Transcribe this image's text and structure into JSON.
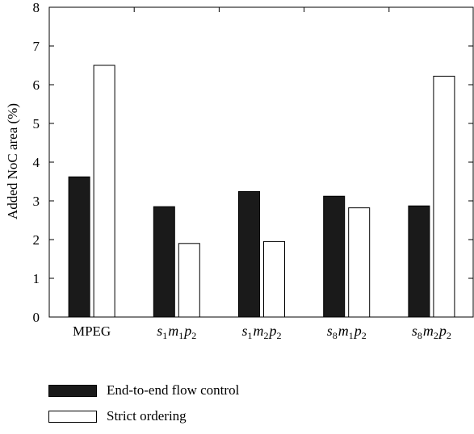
{
  "chart_data": {
    "type": "bar",
    "categories": [
      {
        "base": "s",
        "sub": "",
        "plain": "MPEG"
      },
      {
        "parts": [
          [
            "s",
            "1"
          ],
          [
            "m",
            "1"
          ],
          [
            "p",
            "2"
          ]
        ]
      },
      {
        "parts": [
          [
            "s",
            "1"
          ],
          [
            "m",
            "2"
          ],
          [
            "p",
            "2"
          ]
        ]
      },
      {
        "parts": [
          [
            "s",
            "8"
          ],
          [
            "m",
            "1"
          ],
          [
            "p",
            "2"
          ]
        ]
      },
      {
        "parts": [
          [
            "s",
            "8"
          ],
          [
            "m",
            "2"
          ],
          [
            "p",
            "2"
          ]
        ]
      }
    ],
    "series": [
      {
        "name": "End-to-end flow control",
        "color": "#1a1a1a",
        "values": [
          3.62,
          2.85,
          3.24,
          3.12,
          2.87
        ]
      },
      {
        "name": "Strict ordering",
        "color": "#ffffff",
        "values": [
          6.5,
          1.9,
          1.95,
          2.82,
          6.22
        ]
      }
    ],
    "ylabel": "Added NoC area (%)",
    "xlabel": "",
    "ylim": [
      0,
      8
    ],
    "yticks": [
      0,
      1,
      2,
      3,
      4,
      5,
      6,
      7,
      8
    ],
    "legend_position": "bottom-left",
    "grid": false
  }
}
